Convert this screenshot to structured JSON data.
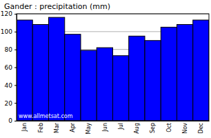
{
  "chart_data": {
    "type": "bar",
    "title": "Gander : precipitation (mm)",
    "categories": [
      "Jan",
      "Feb",
      "Mar",
      "Apr",
      "May",
      "Jun",
      "Jul",
      "Aug",
      "Sep",
      "Oct",
      "Nov",
      "Dec"
    ],
    "values": [
      113,
      108,
      116,
      97,
      79,
      82,
      73,
      95,
      90,
      105,
      108,
      113
    ],
    "color": "#0000ff",
    "ylim": [
      0,
      120
    ],
    "yticks": [
      0,
      20,
      40,
      60,
      80,
      100,
      120
    ],
    "grid": true,
    "annotations": [
      "www.allmetsat.com"
    ]
  }
}
